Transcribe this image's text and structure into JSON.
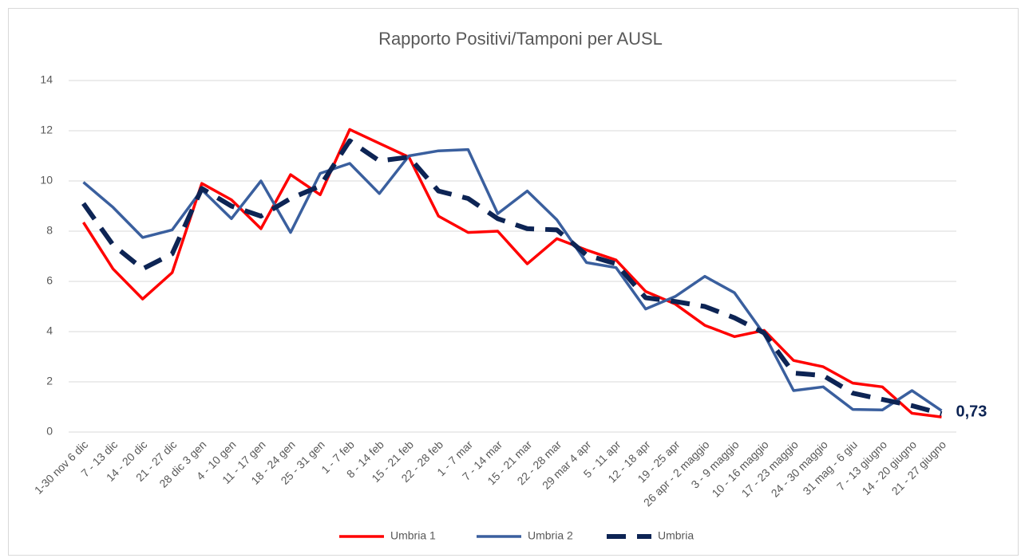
{
  "chart_data": {
    "type": "line",
    "title": "Rapporto Positivi/Tamponi per AUSL",
    "categories": [
      "1-30 nov 6 dic",
      "7 - 13 dic",
      "14 - 20 dic",
      "21 - 27 dic",
      "28 dic 3 gen",
      "4 - 10 gen",
      "11 - 17 gen",
      "18 - 24 gen",
      "25 - 31 gen",
      "1 - 7 feb",
      "8 - 14 feb",
      "15 - 21 feb",
      "22 - 28 feb",
      "1 - 7 mar",
      "7 - 14 mar",
      "15 - 21 mar",
      "22 - 28 mar",
      "29 mar 4 apr",
      "5 - 11 apr",
      "12 - 18 apr",
      "19 - 25 apr",
      "26 apr - 2 maggio",
      "3 - 9 maggio",
      "10 - 16 maggio",
      "17 - 23 maggio",
      "24 - 30 maggio",
      "31 mag - 6 giu",
      "7 - 13 giugno",
      "14 - 20 giugno",
      "21 - 27 giugno"
    ],
    "series": [
      {
        "name": "Umbria 1",
        "color": "#ff0000",
        "dash": false,
        "values": [
          8.35,
          6.5,
          5.3,
          6.35,
          9.9,
          9.25,
          8.1,
          10.25,
          9.45,
          12.05,
          11.5,
          10.95,
          8.6,
          7.95,
          8.0,
          6.7,
          7.7,
          7.25,
          6.85,
          5.6,
          5.1,
          4.25,
          3.8,
          4.05,
          2.85,
          2.6,
          1.95,
          1.8,
          0.75,
          0.6
        ]
      },
      {
        "name": "Umbria 2",
        "color": "#3a5f9e",
        "dash": false,
        "values": [
          9.95,
          8.95,
          7.75,
          8.05,
          9.65,
          8.5,
          10.0,
          7.95,
          10.3,
          10.7,
          9.5,
          11.0,
          11.2,
          11.25,
          8.7,
          9.6,
          8.45,
          6.75,
          6.55,
          4.9,
          5.4,
          6.2,
          5.55,
          3.9,
          1.65,
          1.8,
          0.9,
          0.88,
          1.65,
          0.85
        ]
      },
      {
        "name": "Umbria",
        "color": "#0d2454",
        "dash": true,
        "values": [
          9.1,
          7.45,
          6.5,
          7.1,
          9.7,
          9.0,
          8.6,
          9.3,
          9.8,
          11.6,
          10.8,
          10.95,
          9.6,
          9.3,
          8.5,
          8.1,
          8.05,
          7.05,
          6.7,
          5.35,
          5.2,
          5.0,
          4.55,
          3.95,
          2.35,
          2.25,
          1.55,
          1.3,
          1.05,
          0.73
        ],
        "value_labels": [
          null,
          null,
          null,
          null,
          null,
          null,
          null,
          null,
          null,
          null,
          null,
          null,
          null,
          null,
          null,
          null,
          null,
          null,
          null,
          null,
          null,
          null,
          null,
          null,
          null,
          null,
          null,
          null,
          null,
          "0,73"
        ]
      }
    ],
    "ylim": [
      0,
      14
    ],
    "yticks": [
      0,
      2,
      4,
      6,
      8,
      10,
      12,
      14
    ],
    "grid": true,
    "legend": "bottom"
  }
}
